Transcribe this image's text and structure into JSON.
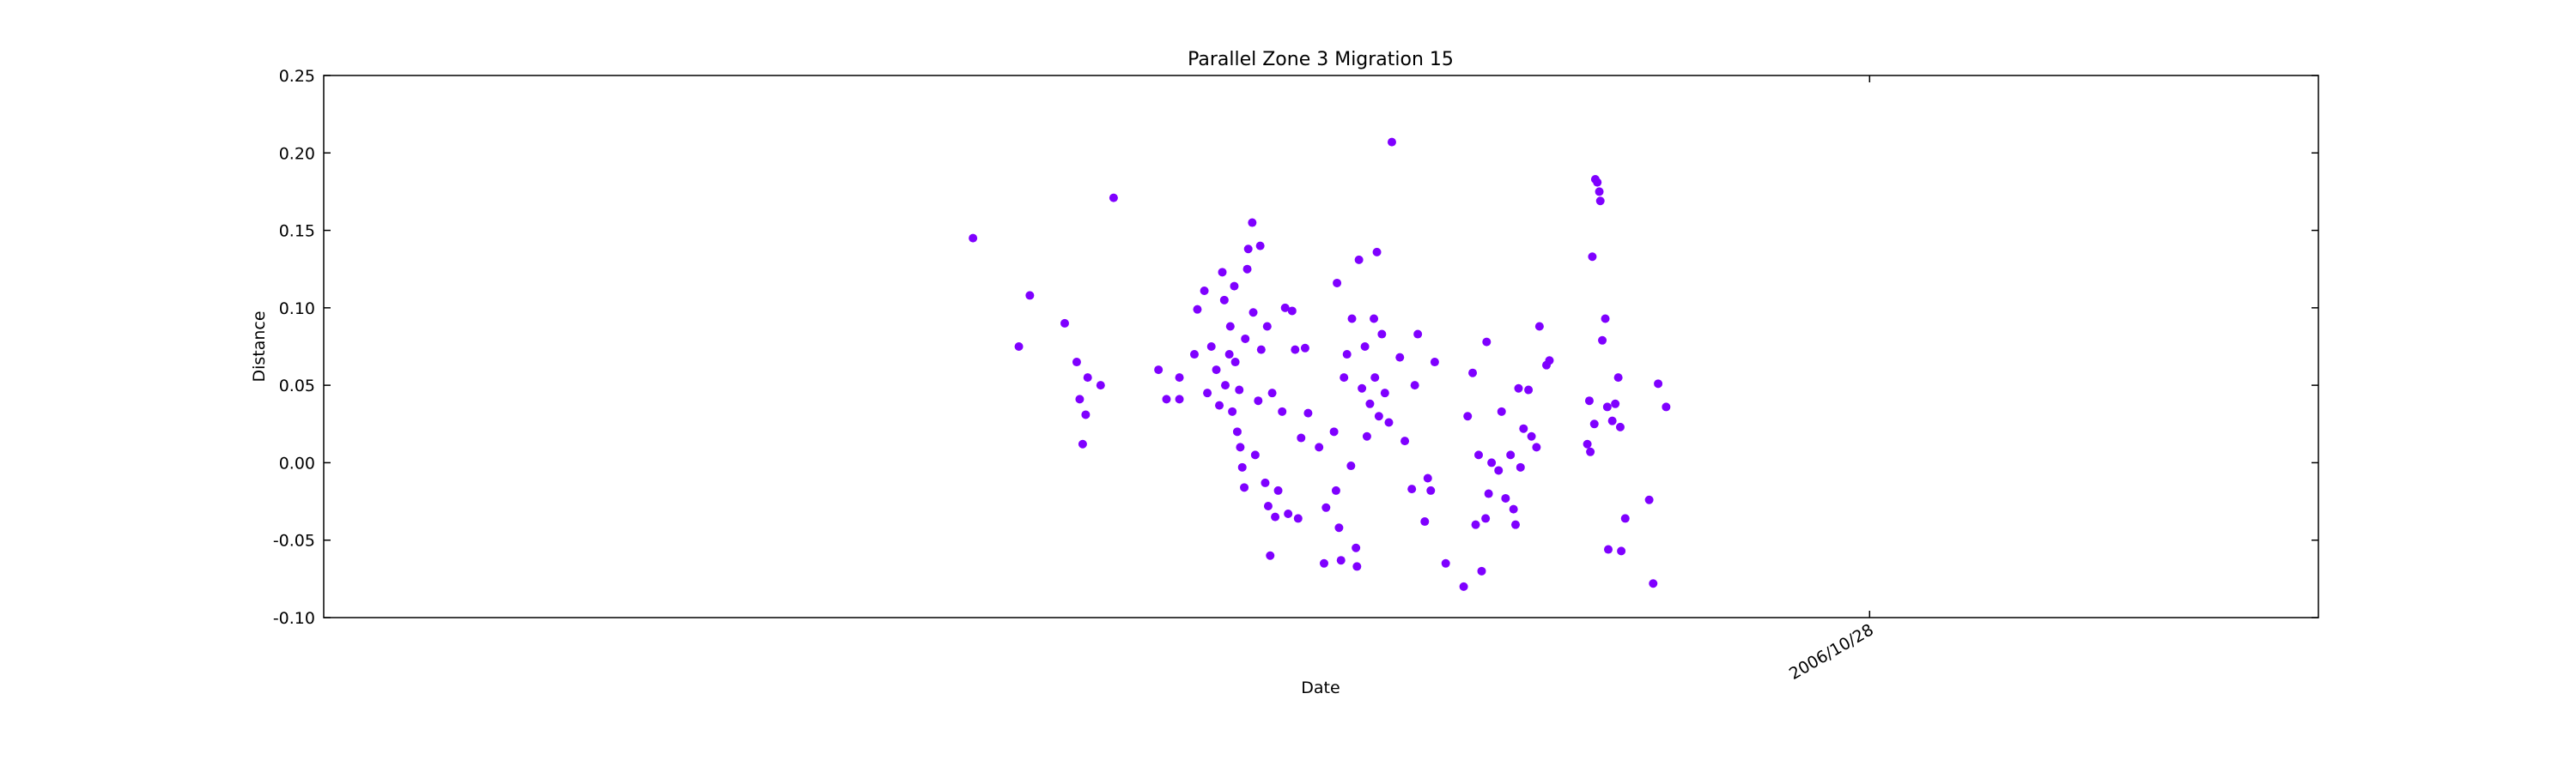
{
  "chart_data": {
    "type": "scatter",
    "title": "Parallel Zone 3 Migration 15",
    "x_label": "Date",
    "y_label": "Distance",
    "color": "#7f00ff",
    "xlim": [
      732610.45,
      732612.45
    ],
    "xticks": [
      {
        "value": 732612,
        "label": "2006/10/28"
      }
    ],
    "ylim": [
      -0.1,
      0.25
    ],
    "yticks": [
      {
        "value": -0.1,
        "label": "-0.10"
      },
      -0.05,
      {
        "value": 0,
        "label": "0.00"
      },
      0.05,
      {
        "value": 0.1,
        "label": "0.10"
      },
      0.15,
      {
        "value": 0.2,
        "label": "0.20"
      },
      0.25
    ],
    "grid": false,
    "x": [
      732611.101,
      732611.147,
      732611.158,
      732611.193,
      732611.205,
      732611.208,
      732611.211,
      732611.214,
      732611.216,
      732611.229,
      732611.242,
      732611.287,
      732611.295,
      732611.308,
      732611.308,
      732611.323,
      732611.326,
      732611.333,
      732611.336,
      732611.34,
      732611.345,
      732611.348,
      732611.351,
      732611.353,
      732611.354,
      732611.358,
      732611.359,
      732611.361,
      732611.363,
      732611.364,
      732611.366,
      732611.368,
      732611.369,
      732611.371,
      732611.373,
      732611.374,
      732611.376,
      732611.377,
      732611.381,
      732611.382,
      732611.384,
      732611.387,
      732611.389,
      732611.39,
      732611.394,
      732611.396,
      732611.397,
      732611.399,
      732611.401,
      732611.404,
      732611.407,
      732611.411,
      732611.414,
      732611.417,
      732611.421,
      732611.424,
      732611.427,
      732611.43,
      732611.434,
      732611.437,
      732611.448,
      732611.453,
      732611.455,
      732611.463,
      732611.465,
      732611.466,
      732611.468,
      732611.47,
      732611.473,
      732611.476,
      732611.48,
      732611.481,
      732611.485,
      732611.486,
      732611.488,
      732611.491,
      732611.494,
      732611.496,
      732611.499,
      732611.503,
      732611.504,
      732611.506,
      732611.508,
      732611.511,
      732611.514,
      732611.518,
      732611.521,
      732611.529,
      732611.534,
      732611.541,
      732611.544,
      732611.547,
      732611.554,
      732611.557,
      732611.56,
      732611.564,
      732611.575,
      732611.593,
      732611.597,
      732611.602,
      732611.605,
      732611.608,
      732611.611,
      732611.615,
      732611.616,
      732611.618,
      732611.621,
      732611.628,
      732611.631,
      732611.635,
      732611.64,
      732611.643,
      732611.645,
      732611.648,
      732611.65,
      732611.653,
      732611.658,
      732611.661,
      732611.666,
      732611.669,
      732611.676,
      732611.679,
      732611.717,
      732611.719,
      732611.72,
      732611.722,
      732611.724,
      732611.725,
      732611.727,
      732611.729,
      732611.73,
      732611.732,
      732611.735,
      732611.737,
      732611.738,
      732611.742,
      732611.745,
      732611.748,
      732611.75,
      732611.751,
      732611.755,
      732611.779,
      732611.783,
      732611.788,
      732611.796
    ],
    "y": [
      0.145,
      0.075,
      0.108,
      0.09,
      0.065,
      0.041,
      0.012,
      0.031,
      0.055,
      0.05,
      0.171,
      0.06,
      0.041,
      0.055,
      0.041,
      0.07,
      0.099,
      0.111,
      0.045,
      0.075,
      0.06,
      0.037,
      0.123,
      0.105,
      0.05,
      0.07,
      0.088,
      0.033,
      0.114,
      0.065,
      0.02,
      0.047,
      0.01,
      -0.003,
      -0.016,
      0.08,
      0.125,
      0.138,
      0.155,
      0.097,
      0.005,
      0.04,
      0.14,
      0.073,
      -0.013,
      0.088,
      -0.028,
      -0.06,
      0.045,
      -0.035,
      -0.018,
      0.033,
      0.1,
      -0.033,
      0.098,
      0.073,
      -0.036,
      0.016,
      0.074,
      0.032,
      0.01,
      -0.065,
      -0.029,
      0.02,
      -0.018,
      0.116,
      -0.042,
      -0.063,
      0.055,
      0.07,
      -0.002,
      0.093,
      -0.055,
      -0.067,
      0.131,
      0.048,
      0.075,
      0.017,
      0.038,
      0.093,
      0.055,
      0.136,
      0.03,
      0.083,
      0.045,
      0.026,
      0.207,
      0.068,
      0.014,
      -0.017,
      0.05,
      0.083,
      -0.038,
      -0.01,
      -0.018,
      0.065,
      -0.065,
      -0.08,
      0.03,
      0.058,
      -0.04,
      0.005,
      -0.07,
      -0.036,
      0.078,
      -0.02,
      0.0,
      -0.005,
      0.033,
      -0.023,
      0.005,
      -0.03,
      -0.04,
      0.048,
      -0.003,
      0.022,
      0.047,
      0.017,
      0.01,
      0.088,
      0.063,
      0.066,
      0.012,
      0.04,
      0.007,
      0.133,
      0.025,
      0.183,
      0.181,
      0.175,
      0.169,
      0.079,
      0.093,
      0.036,
      -0.056,
      0.027,
      0.038,
      0.055,
      0.023,
      -0.057,
      -0.036,
      -0.024,
      -0.078,
      0.051,
      0.036
    ]
  }
}
